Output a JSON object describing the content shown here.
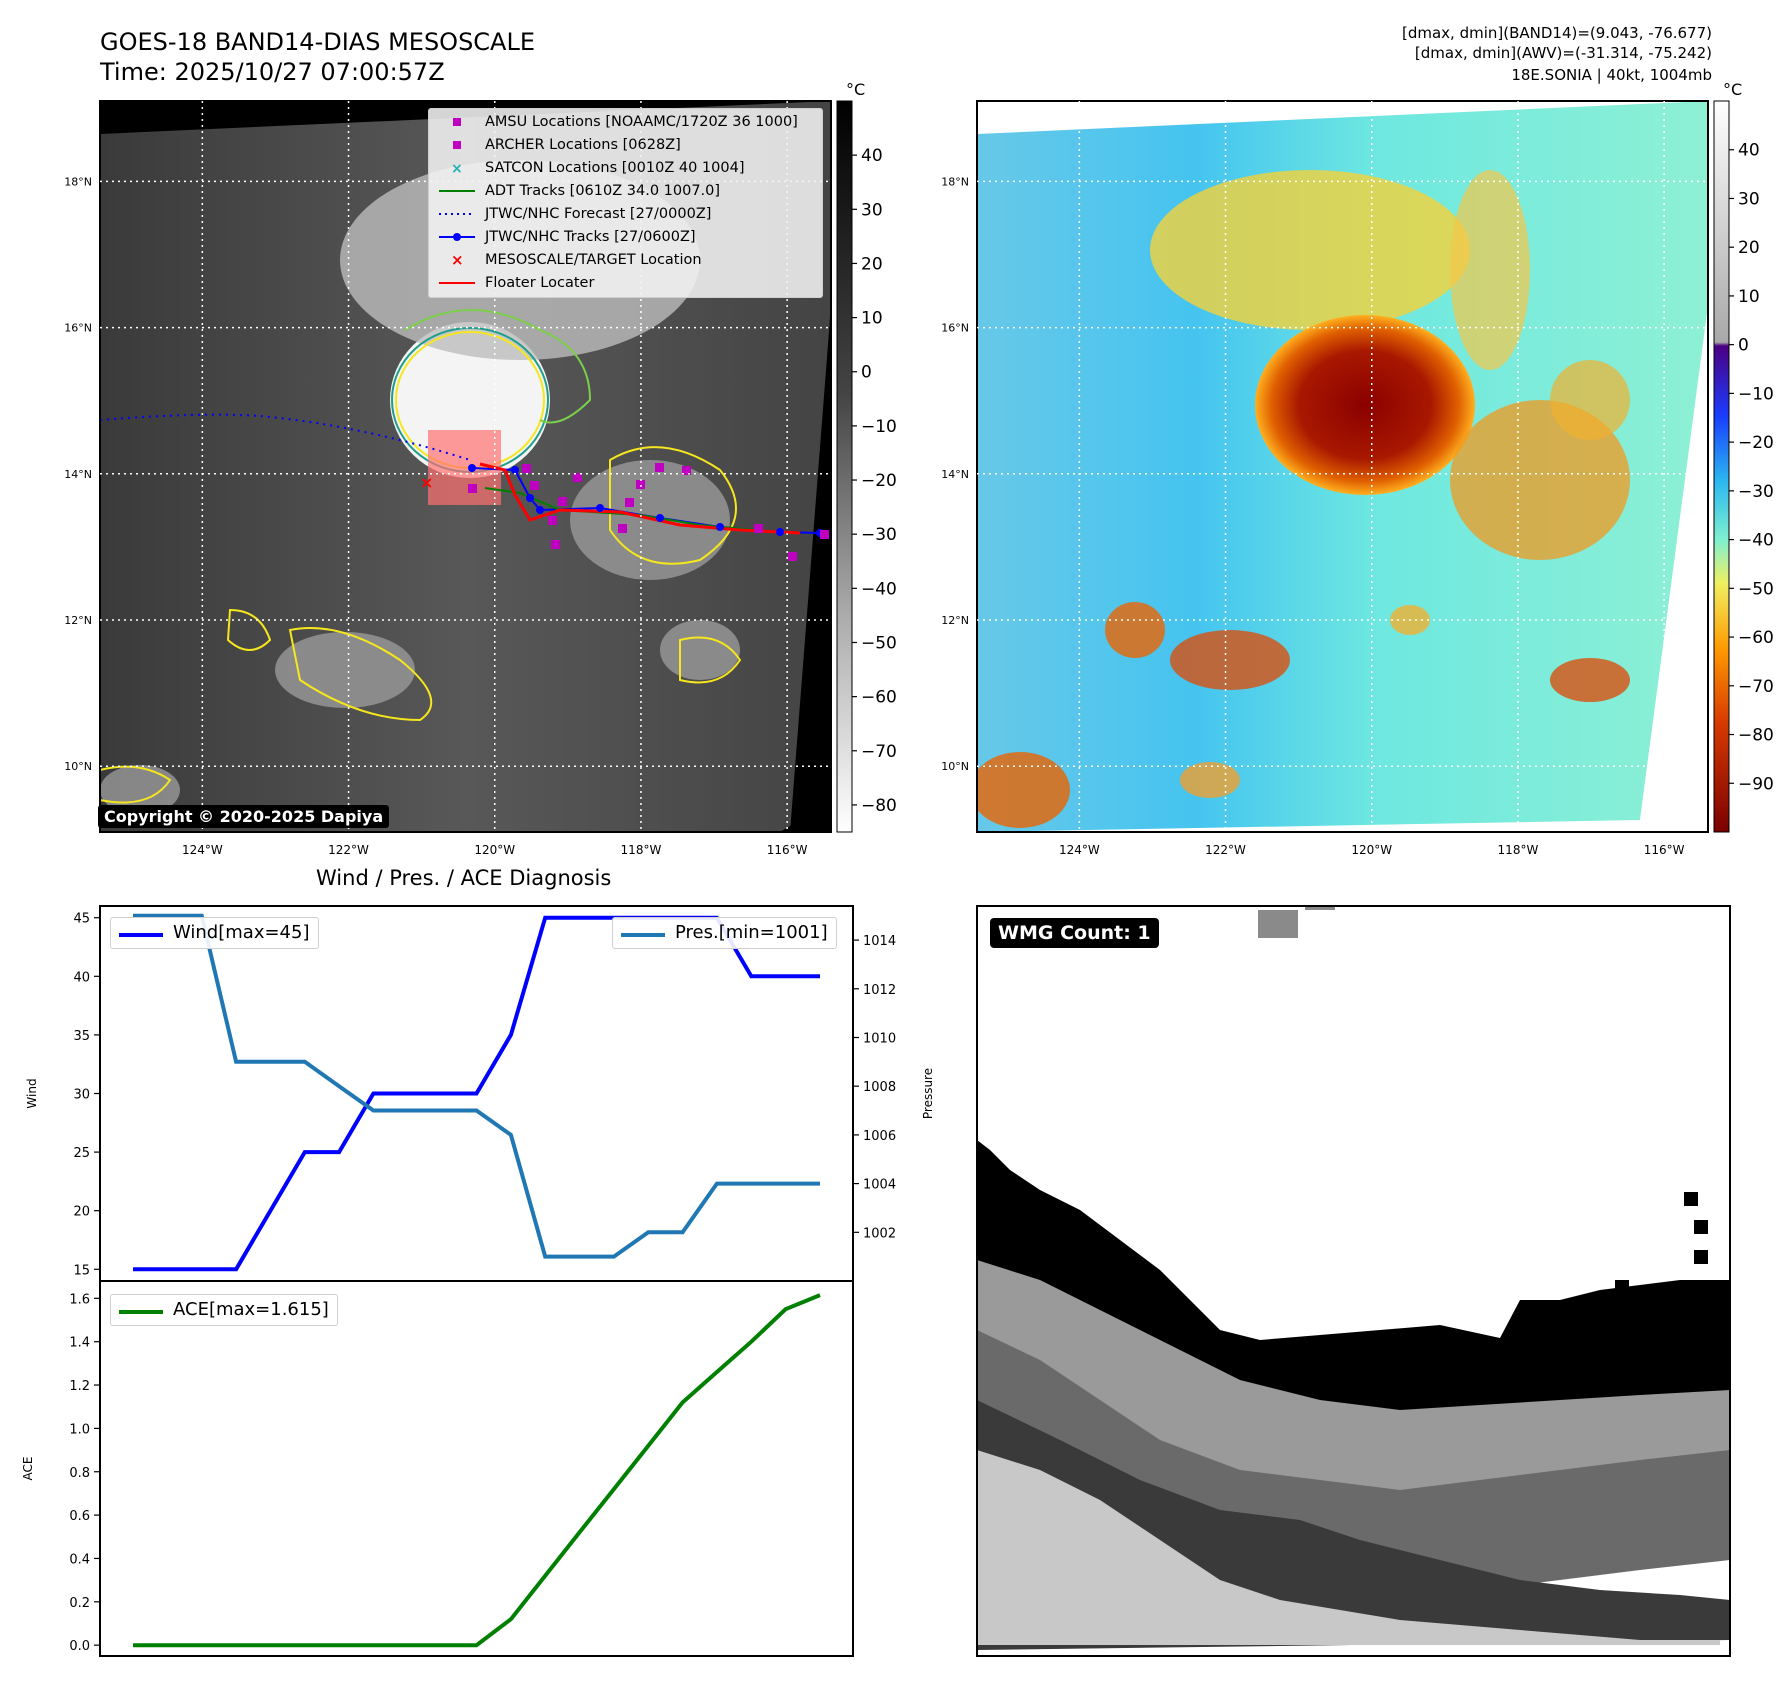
{
  "title": {
    "line1": "GOES-18 BAND14-DIAS MESOSCALE",
    "line2": "Time: 2025/10/27 07:00:57Z"
  },
  "header_right": {
    "line1": "[dmax, dmin](BAND14)=(9.043, -76.677)",
    "line2": "[dmax, dmin](AWV)=(-31.314, -75.242)",
    "line3": "18E.SONIA | 40kt, 1004mb"
  },
  "copyright": "Copyright © 2020-2025 Dapiya",
  "wmg_badge": "WMG Count: 1",
  "map": {
    "lat_labels": [
      "18°N",
      "16°N",
      "14°N",
      "12°N",
      "10°N"
    ],
    "lat_values": [
      18,
      16,
      14,
      12,
      10
    ],
    "lon_labels": [
      "124°W",
      "122°W",
      "120°W",
      "118°W",
      "116°W"
    ],
    "lon_values": [
      -124,
      -122,
      -120,
      -118,
      -116
    ],
    "lat_range": [
      9.1,
      19.1
    ],
    "lon_range": [
      -125.4,
      -115.4
    ],
    "legend": [
      {
        "label": "AMSU Locations [NOAAMC/1720Z 36 1000]",
        "marker": "square",
        "color": "#c000c0"
      },
      {
        "label": "ARCHER Locations [0628Z]",
        "marker": "square",
        "color": "#c000c0"
      },
      {
        "label": "SATCON Locations [0010Z 40 1004]",
        "marker": "x",
        "color": "#20b0b0"
      },
      {
        "label": "ADT Tracks [0610Z 34.0 1007.0]",
        "marker": "line",
        "color": "#008000"
      },
      {
        "label": "JTWC/NHC Forecast [27/0000Z]",
        "marker": "dotted",
        "color": "#0000ff"
      },
      {
        "label": "JTWC/NHC Tracks [27/0600Z]",
        "marker": "line-dot",
        "color": "#0000ff"
      },
      {
        "label": "MESOSCALE/TARGET Location",
        "marker": "x",
        "color": "#ff0000"
      },
      {
        "label": "Floater Locater",
        "marker": "line",
        "color": "#ff0000"
      }
    ],
    "colors": {
      "amsu": "#c000c0",
      "satcon": "#20b0b0",
      "adt": "#008000",
      "forecast": "#0000ff",
      "track": "#0000ff",
      "floater": "#ff0000",
      "contour_yellow": "#f5e61e",
      "contour_green": "#7ccf4a",
      "contour_teal": "#1f9e8a"
    }
  },
  "colorbar_left": {
    "unit": "°C",
    "ticks": [
      "40",
      "30",
      "20",
      "10",
      "0",
      "−10",
      "−20",
      "−30",
      "−40",
      "−50",
      "−60",
      "−70",
      "−80"
    ],
    "range": [
      -85,
      50
    ]
  },
  "colorbar_right": {
    "unit": "°C",
    "ticks": [
      "40",
      "30",
      "20",
      "10",
      "0",
      "−10",
      "−20",
      "−30",
      "−40",
      "−50",
      "−60",
      "−70",
      "−80",
      "−90"
    ],
    "range": [
      -100,
      50
    ]
  },
  "chart_data": [
    {
      "type": "line",
      "title": "Wind / Pres. / ACE Diagnosis",
      "ylabel": "Wind",
      "ylim": [
        14,
        46
      ],
      "yticks": [
        "15",
        "20",
        "25",
        "30",
        "35",
        "40",
        "45"
      ],
      "x": [
        0,
        1,
        2,
        3,
        4,
        5,
        6,
        7,
        8,
        9,
        10,
        11,
        12,
        13,
        14,
        15,
        16,
        17,
        18,
        19,
        20
      ],
      "series": [
        {
          "name": "Wind[max=45]",
          "color": "#0000ff",
          "values": [
            15,
            15,
            15,
            15,
            20,
            25,
            25,
            30,
            30,
            30,
            30,
            35,
            45,
            45,
            45,
            45,
            45,
            45,
            40,
            40,
            40
          ]
        }
      ]
    },
    {
      "type": "line",
      "ylabel": "Pressure",
      "ylim": [
        1000,
        1015.4
      ],
      "yticks": [
        "1002",
        "1004",
        "1006",
        "1008",
        "1010",
        "1012",
        "1014"
      ],
      "x": [
        0,
        1,
        2,
        3,
        4,
        5,
        6,
        7,
        8,
        9,
        10,
        11,
        12,
        13,
        14,
        15,
        16,
        17,
        18,
        19,
        20
      ],
      "series": [
        {
          "name": "Pres.[min=1001]",
          "color": "#1f77b4",
          "values": [
            1015,
            1015,
            1015,
            1009,
            1009,
            1009,
            1008,
            1007,
            1007,
            1007,
            1007,
            1006,
            1001,
            1001,
            1001,
            1002,
            1002,
            1004,
            1004,
            1004,
            1004
          ]
        }
      ]
    },
    {
      "type": "line",
      "ylabel": "ACE",
      "ylim": [
        -0.05,
        1.68
      ],
      "yticks": [
        "0.0",
        "0.2",
        "0.4",
        "0.6",
        "0.8",
        "1.0",
        "1.2",
        "1.4",
        "1.6"
      ],
      "x": [
        0,
        1,
        2,
        3,
        4,
        5,
        6,
        7,
        8,
        9,
        10,
        11,
        12,
        13,
        14,
        15,
        16,
        17,
        18,
        19,
        20
      ],
      "series": [
        {
          "name": "ACE[max=1.615]",
          "color": "#008000",
          "values": [
            0,
            0,
            0,
            0,
            0,
            0,
            0,
            0,
            0,
            0,
            0,
            0.12,
            0.32,
            0.52,
            0.72,
            0.92,
            1.12,
            1.26,
            1.4,
            1.55,
            1.615
          ]
        }
      ]
    }
  ]
}
